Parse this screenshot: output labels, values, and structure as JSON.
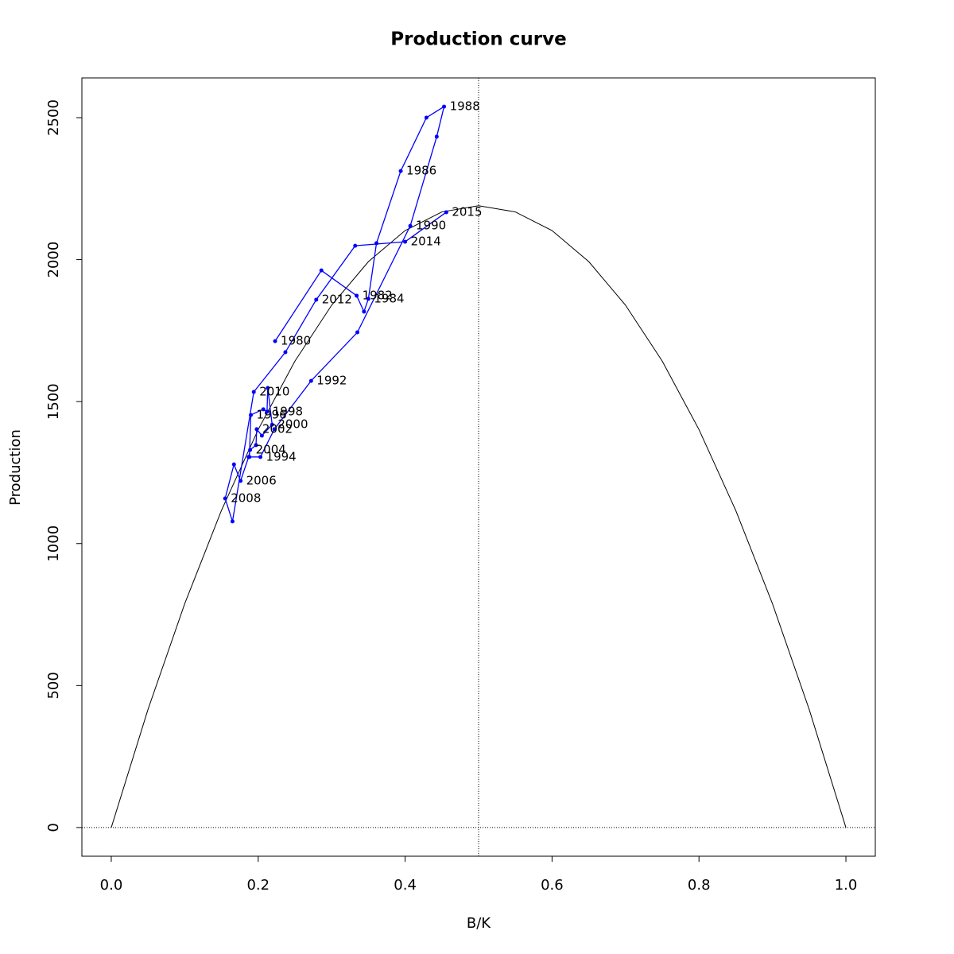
{
  "chart_data": {
    "type": "line",
    "title": "Production curve",
    "x_label": "B/K",
    "y_label": "Production",
    "xlim": [
      -0.04,
      1.04
    ],
    "ylim": [
      -101,
      2640
    ],
    "xticks": [
      {
        "value": 0,
        "label": "0.0"
      },
      0.2,
      0.4,
      0.6,
      0.8,
      {
        "value": 1,
        "label": "1.0"
      }
    ],
    "yticks": [
      0,
      500,
      1000,
      1500,
      2000,
      2500
    ],
    "vline": 0.5,
    "hline": 0,
    "color": "#0000ff",
    "x": [
      0.223,
      0.286,
      0.334,
      0.344,
      0.35,
      0.361,
      0.394,
      0.429,
      0.453,
      0.443,
      0.407,
      0.335,
      0.272,
      0.222,
      0.203,
      0.188,
      0.19,
      0.207,
      0.212,
      0.213,
      0.219,
      0.205,
      0.198,
      0.197,
      0.189,
      0.187,
      0.176,
      0.167,
      0.155,
      0.165,
      0.194,
      0.237,
      0.279,
      0.332,
      0.4,
      0.456
    ],
    "values": [
      1713,
      1962,
      1873,
      1817,
      1862,
      2058,
      2312,
      2500,
      2539,
      2433,
      2119,
      1744,
      1573,
      1403,
      1305,
      1305,
      1453,
      1473,
      1464,
      1548,
      1419,
      1380,
      1403,
      1347,
      1330,
      1305,
      1221,
      1279,
      1159,
      1078,
      1534,
      1674,
      1859,
      2049,
      2063,
      2167
    ],
    "point_labels": [
      "1980",
      null,
      "1982",
      null,
      "1984",
      null,
      "1986",
      null,
      "1988",
      null,
      "1990",
      null,
      "1992",
      null,
      "1994",
      null,
      "1996",
      null,
      "1998",
      null,
      "2000",
      null,
      "2002",
      null,
      "2004",
      null,
      "2006",
      null,
      "2008",
      null,
      "2010",
      null,
      "2012",
      null,
      "2014",
      "2015"
    ],
    "curve": {
      "color": "#000000",
      "x": [
        0,
        0.05,
        0.1,
        0.15,
        0.2,
        0.25,
        0.3,
        0.35,
        0.4,
        0.45,
        0.5,
        0.55,
        0.6,
        0.65,
        0.7,
        0.75,
        0.8,
        0.85,
        0.9,
        0.95,
        1
      ],
      "values": [
        0,
        416.1,
        788.4,
        1116.9,
        1401.6,
        1642.5,
        1839.6,
        1992.9,
        2102.4,
        2168.1,
        2190,
        2168.1,
        2102.4,
        1992.9,
        1839.6,
        1642.5,
        1401.6,
        1116.9,
        788.4,
        416.1,
        0
      ]
    }
  }
}
